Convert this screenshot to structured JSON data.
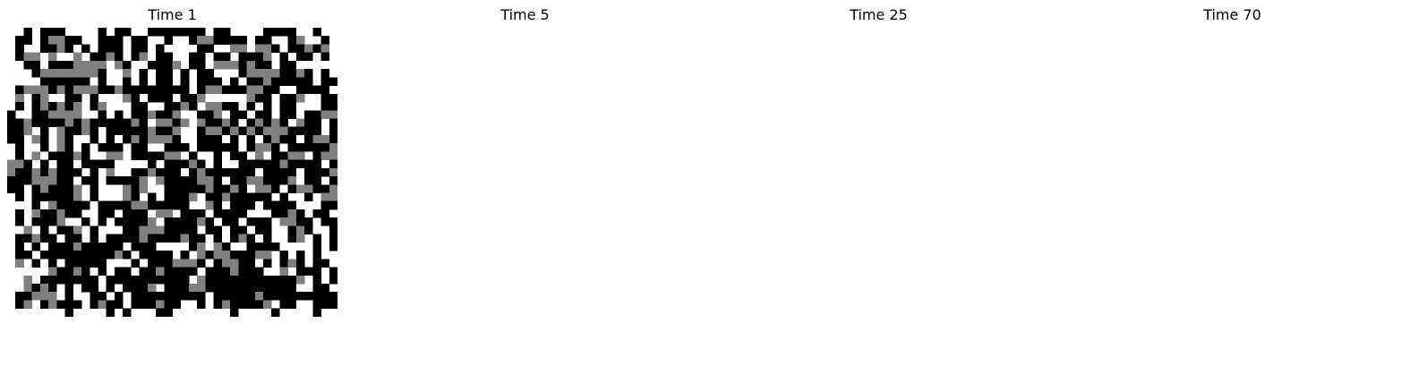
{
  "colors": {
    "empty": "#ffffff",
    "type_a": "#808080",
    "type_b": "#000000"
  },
  "chart_data": [
    {
      "type": "heatmap",
      "title": "Time 1",
      "legend": {
        "0": "empty (white)",
        "1": "gray",
        "2": "black"
      },
      "grid": [
        "0020222000020220022222220220000222200200",
        "0220211220022202200200211222202200210020",
        "0200221202022202202000022001101120221210",
        "0211010010221202102200220220222102022020",
        "0022022211110120022210220111212202200000",
        "0002111111120010202202022000211112212020",
        "0000222222020020202202022202022122222022",
        "0211121211122122222222021122211220022220",
        "0102100220200012022202210000012202210022",
        "0202121210210002200221201122020202200022",
        "2002211110020202212210022102202202202211",
        "2212222121222221201121012212021212012202",
        "2210201221202222212210021121212111222202",
        "2201201200202021211120022202020212202112",
        "0200201202022202200222022222021120222221",
        "0201022212001102222110200202201022110211",
        "1120202202222000020222120200222221222202",
        "1221212220201002212220212222220222202221",
        "2221112202202222101222211202211222102202",
        "2202122210200012100222221221201120211221",
        "0202222210200012020222102212222202002011",
        "0002012222022221122222001202220222200022",
        "0201221220022022201102220222200022120220",
        "0202221002020222210222212022022201122022",
        "0010202210200022111222202202202200212002",
        "0221220220202222122221220202120200210202",
        "0202022212222202220000210120022220000202",
        "0220222222222120222202012112221102020200",
        "0102020222220002022211120211220202120220",
        "0000012212020220221222202221222001022202",
        "0010222222202222222222012222222222210202",
        "0012120202202022210222112222222222200220",
        "0221110200220202222222220222221222222222",
        "0210212220212202221220020212222102200222",
        "0000000200002020002200000002000020000200",
        "0000000000000000000000000000000000000000",
        "0000000000000000000000000000000000000000",
        "0000000000000000000000000000000000000000",
        "0000000000000000000000000000000000000000",
        "0000000000000000000000000000000000000000"
      ]
    },
    {
      "type": "heatmap",
      "title": "Time 5",
      "legend": {
        "0": "empty (white)",
        "1": "gray",
        "2": "black"
      },
      "grid": [
        "0000000000000000000000000000000000000000",
        "0000000000000000000000000000000000000000",
        "0000000000000000000000000000000000000000",
        "0000000000000000000000000000000000000000",
        "0000000000000000000000000000000000000000",
        "0000000000000000000000000000000000000000",
        "0000000000000000000000000000000000000000",
        "0000000000000000000000000000000000000000",
        "0000000000000000000000000000000000000000",
        "0000000000000000000000000000000000000000",
        "0000000000000000000000000000000000000000",
        "0000000000000000000000000000000000000000",
        "0000000000000000000000000000000000000000",
        "0000000000000000000000000000000000000000",
        "0000000000000000000000000000000000000000",
        "0000000000000000000000000000000000000000",
        "0000000000000000000000000000000000000000",
        "0000000000000000000000000000000000000000",
        "0000000000000000000000000000000000000000",
        "0000000000000000000000000000000000000000",
        "0000000000000000000000000000000000000000",
        "0000000000000000000000000000000000000000",
        "0000000000000000000000000000000000000000",
        "0000000000000000000000000000000000000000",
        "0000000000000000000000000000000000000000",
        "0000000000000000000000000000000000000000",
        "0000000000000000000000000000000000000000",
        "0000000000000000000000000000000000000000",
        "0000000000000000000000000000000000000000",
        "0000000000000000000000000000000000000000",
        "0000000000000000000000000000000000000000",
        "0000000000000000000000000000000000000000",
        "0000000000000000000000000000000000000000",
        "0000000000000000000000000000000000000000",
        "0000000000000000000000000000000000000000",
        "0000000000000000000000000000000000000000",
        "0000000000000000000000000000000000000000",
        "0000000000000000000000000000000000000000",
        "0000000000000000000000000000000000000000",
        "0000000000000000000000000000000000000000"
      ]
    },
    {
      "type": "heatmap",
      "title": "Time 25",
      "legend": {
        "0": "empty (white)",
        "1": "gray",
        "2": "black"
      },
      "grid": [
        "0000000000000000000000000000000000000000",
        "0000000000000000000000000000000000000000",
        "0000000000000000000000000000000000000000",
        "0000000000000000000000000000000000000000",
        "0000000000000000000000000000000000000000",
        "0000000000000000000000000000000000000000",
        "0000000000000000000000000000000000000000",
        "0000000000000000000000000000000000000000",
        "0000000000000000000000000000000000000000",
        "0000000000000000000000000000000000000000",
        "0000000000000000000000000000000000000000",
        "0000000000000000000000000000000000000000",
        "0000000000000000000000000000000000000000",
        "0000000000000000000000000000000000000000",
        "0000000000000000000000000000000000000000",
        "0000000000000000000000000000000000000000",
        "0000000000000000000000000000000000000000",
        "0000000000000000000000000000000000000000",
        "0000000000000000000000000000000000000000",
        "0000000000000000000000000000000000000000",
        "0000000000000000000000000000000000000000",
        "0000000000000000000000000000000000000000",
        "0000000000000000000000000000000000000000",
        "0000000000000000000000000000000000000000",
        "0000000000000000000000000000000000000000",
        "0000000000000000000000000000000000000000",
        "0000000000000000000000000000000000000000",
        "0000000000000000000000000000000000000000",
        "0000000000000000000000000000000000000000",
        "0000000000000000000000000000000000000000",
        "0000000000000000000000000000000000000000",
        "0000000000000000000000000000000000000000",
        "0000000000000000000000000000000000000000",
        "0000000000000000000000000000000000000000",
        "0000000000000000000000000000000000000000",
        "0000000000000000000000000000000000000000",
        "0000000000000000000000000000000000000000",
        "0000000000000000000000000000000000000000",
        "0000000000000000000000000000000000000000",
        "0000000000000000000000000000000000000000"
      ]
    },
    {
      "type": "heatmap",
      "title": "Time 70",
      "legend": {
        "0": "empty (white)",
        "1": "gray",
        "2": "black"
      },
      "grid": [
        "0000000000000000000000000000000000000000",
        "0000000000000000000000000000000000000000",
        "0000000000000000000000000000000000000000",
        "0000000000000000000000000000000000000000",
        "0000000000000000000000000000000000000000",
        "0000000000000000000000000000000000000000",
        "0000000000000000000000000000000000000000",
        "0000000000000000000000000000000000000000",
        "0000000000000000000000000000000000000000",
        "0000000000000000000000000000000000000000",
        "0000000000000000000000000000000000000000",
        "0000000000000000000000000000000000000000",
        "0000000000000000000000000000000000000000",
        "0000000000000000000000000000000000000000",
        "0000000000000000000000000000000000000000",
        "0000000000000000000000000000000000000000",
        "0000000000000000000000000000000000000000",
        "0000000000000000000000000000000000000000",
        "0000000000000000000000000000000000000000",
        "0000000000000000000000000000000000000000",
        "0000000000000000000000000000000000000000",
        "0000000000000000000000000000000000000000",
        "0000000000000000000000000000000000000000",
        "0000000000000000000000000000000000000000",
        "0000000000000000000000000000000000000000",
        "0000000000000000000000000000000000000000",
        "0000000000000000000000000000000000000000",
        "0000000000000000000000000000000000000000",
        "0000000000000000000000000000000000000000",
        "0000000000000000000000000000000000000000",
        "0000000000000000000000000000000000000000",
        "0000000000000000000000000000000000000000",
        "0000000000000000000000000000000000000000",
        "0000000000000000000000000000000000000000",
        "0000000000000000000000000000000000000000",
        "0000000000000000000000000000000000000000",
        "0000000000000000000000000000000000000000",
        "0000000000000000000000000000000000000000",
        "0000000000000000000000000000000000000000",
        "0000000000000000000000000000000000000000"
      ]
    }
  ]
}
